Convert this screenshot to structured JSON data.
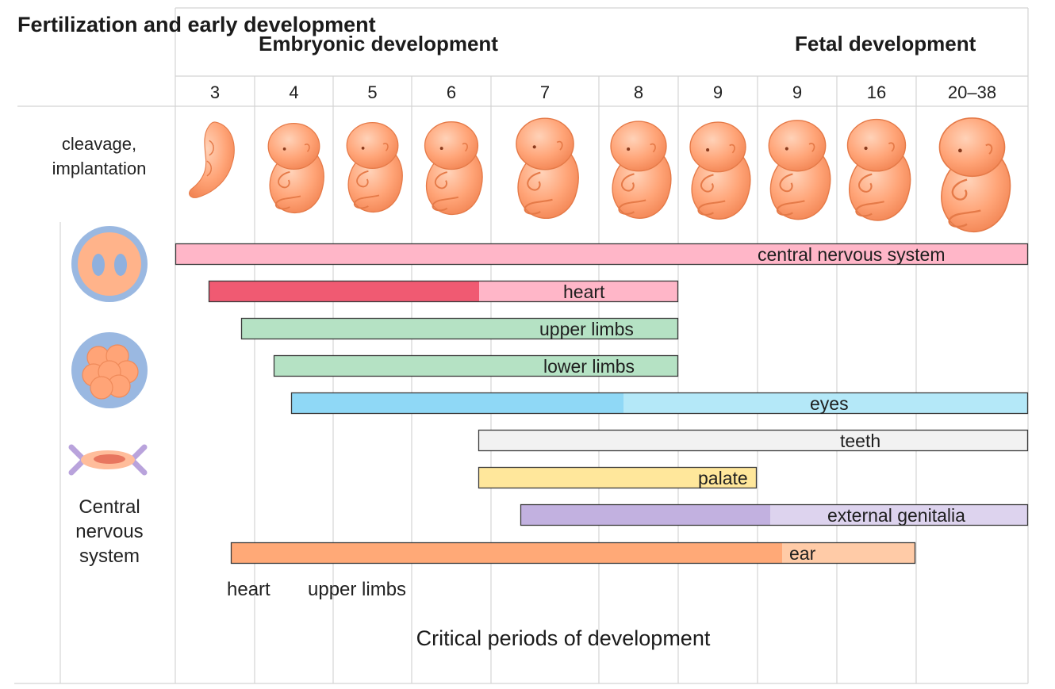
{
  "header": {
    "left_title": "Fertilization and early development",
    "embryonic": "Embryonic development",
    "fetal": "Fetal development"
  },
  "weeks": [
    "3",
    "4",
    "5",
    "6",
    "7",
    "8",
    "9",
    "9",
    "16",
    "20–38"
  ],
  "left_column": {
    "top_label": "cleavage, implantation",
    "bottom_label": "Central nervous system"
  },
  "bars": [
    {
      "label": "central nervous system",
      "color": "#ffb6c8"
    },
    {
      "label": "heart",
      "color": "#ffb6c8",
      "dark_color": "#f05a72"
    },
    {
      "label": "upper limbs",
      "color": "#b5e2c4"
    },
    {
      "label": "lower limbs",
      "color": "#b5e2c4"
    },
    {
      "label": "eyes",
      "color": "#b4e8f8",
      "dark_color": "#8fd8f6"
    },
    {
      "label": "teeth",
      "color": "#f2f2f2"
    },
    {
      "label": "palate",
      "color": "#ffe79b"
    },
    {
      "label": "external genitalia",
      "color": "#ddd3ee",
      "dark_color": "#c2b1e0"
    },
    {
      "label": "ear",
      "color": "#ffcba7",
      "dark_color": "#ffa977"
    }
  ],
  "footer": {
    "label_heart": "heart",
    "label_upper_limbs": "upper limbs",
    "title": "Critical periods of development"
  },
  "colors": {
    "embryo": "#ffa477",
    "grid": "#d4d4d4",
    "zygote_ring": "#8fb0de"
  },
  "icons": {
    "zygote": "zygote-icon",
    "morula": "morula-icon",
    "implantation": "implantation-icon",
    "embryo": "embryo-icon"
  }
}
